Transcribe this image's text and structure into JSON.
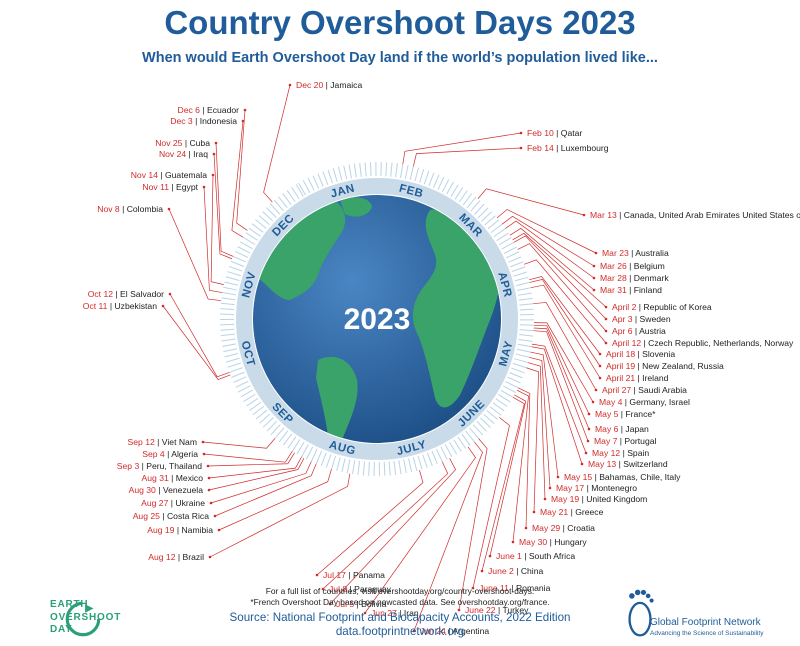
{
  "title": "Country Overshoot Days 2023",
  "subtitle": "When would Earth Overshoot Day land if the world’s population lived like...",
  "center_label": "2023",
  "months": [
    "JAN",
    "FEB",
    "MAR",
    "APR",
    "MAY",
    "JUNE",
    "JULY",
    "AUG",
    "SEP",
    "OCT",
    "NOV",
    "DEC"
  ],
  "chart_data": {
    "type": "radial-timeline",
    "year": 2023,
    "entries": [
      {
        "date": "Feb 10",
        "countries": "Qatar"
      },
      {
        "date": "Feb 14",
        "countries": "Luxembourg"
      },
      {
        "date": "Mar 13",
        "countries": "Canada, United Arab Emirates United States of America"
      },
      {
        "date": "Mar 23",
        "countries": "Australia"
      },
      {
        "date": "Mar 26",
        "countries": "Belgium"
      },
      {
        "date": "Mar 28",
        "countries": "Denmark"
      },
      {
        "date": "Mar 31",
        "countries": "Finland"
      },
      {
        "date": "April 2",
        "countries": "Republic of Korea"
      },
      {
        "date": "Apr 3",
        "countries": "Sweden"
      },
      {
        "date": "Apr 6",
        "countries": "Austria"
      },
      {
        "date": "April 12",
        "countries": "Czech Republic, Netherlands, Norway"
      },
      {
        "date": "April 18",
        "countries": "Slovenia"
      },
      {
        "date": "April 19",
        "countries": "New Zealand, Russia"
      },
      {
        "date": "April 21",
        "countries": "Ireland"
      },
      {
        "date": "April 27",
        "countries": "Saudi Arabia"
      },
      {
        "date": "May 4",
        "countries": "Germany, Israel"
      },
      {
        "date": "May 5",
        "countries": "France*"
      },
      {
        "date": "May 6",
        "countries": "Japan"
      },
      {
        "date": "May 7",
        "countries": "Portugal"
      },
      {
        "date": "May 12",
        "countries": "Spain"
      },
      {
        "date": "May 13",
        "countries": "Switzerland"
      },
      {
        "date": "May 15",
        "countries": "Bahamas, Chile, Italy"
      },
      {
        "date": "May 17",
        "countries": "Montenegro"
      },
      {
        "date": "May 19",
        "countries": "United Kingdom"
      },
      {
        "date": "May 21",
        "countries": "Greece"
      },
      {
        "date": "May 29",
        "countries": "Croatia"
      },
      {
        "date": "May 30",
        "countries": "Hungary"
      },
      {
        "date": "June 1",
        "countries": "South Africa"
      },
      {
        "date": "June 2",
        "countries": "China"
      },
      {
        "date": "June 11",
        "countries": "Romania"
      },
      {
        "date": "June 22",
        "countries": "Turkey"
      },
      {
        "date": "Jun 24",
        "countries": "Argentina"
      },
      {
        "date": "Jun 27",
        "countries": "Iran"
      },
      {
        "date": "Jul 5",
        "countries": "Bolivia"
      },
      {
        "date": "Jul 8",
        "countries": "Paraguay"
      },
      {
        "date": "Jul 17",
        "countries": "Panama"
      },
      {
        "date": "Aug 12",
        "countries": "Brazil"
      },
      {
        "date": "Aug 19",
        "countries": "Namibia"
      },
      {
        "date": "Aug 25",
        "countries": "Costa Rica"
      },
      {
        "date": "Aug 27",
        "countries": "Ukraine"
      },
      {
        "date": "Aug 30",
        "countries": "Venezuela"
      },
      {
        "date": "Aug 31",
        "countries": "Mexico"
      },
      {
        "date": "Sep 3",
        "countries": "Peru, Thailand"
      },
      {
        "date": "Sep 4",
        "countries": "Algeria"
      },
      {
        "date": "Sep 12",
        "countries": "Viet Nam"
      },
      {
        "date": "Oct 11",
        "countries": "Uzbekistan"
      },
      {
        "date": "Oct 12",
        "countries": "El Salvador"
      },
      {
        "date": "Nov 8",
        "countries": "Colombia"
      },
      {
        "date": "Nov 11",
        "countries": "Egypt"
      },
      {
        "date": "Nov 14",
        "countries": "Guatemala"
      },
      {
        "date": "Nov 24",
        "countries": "Iraq"
      },
      {
        "date": "Nov 25",
        "countries": "Cuba"
      },
      {
        "date": "Dec 3",
        "countries": "Indonesia"
      },
      {
        "date": "Dec 6",
        "countries": "Ecuador"
      },
      {
        "date": "Dec 20",
        "countries": "Jamaica"
      }
    ]
  },
  "footnote": {
    "line1": "For a full list of countries, visit overshootday.org/country-overshoot-days.",
    "line2": "*French Overshoot Day based on nowcasted data. See overshootday.org/france."
  },
  "source": {
    "line1": "Source: National Footprint and Biocapacity Accounts, 2022 Edition",
    "line2": "data.footprintnetwork.org"
  },
  "logos": {
    "eod": {
      "line1": "EARTH",
      "line2": "OVERSHOOT",
      "line3": "DAY"
    },
    "gfn": {
      "name": "Global Footprint Network",
      "tagline": "Advancing the Science of Sustainability"
    }
  },
  "colors": {
    "title": "#1f5c99",
    "date": "#d12b2b",
    "ocean": "#2f6aa8",
    "land": "#3aa36a"
  }
}
